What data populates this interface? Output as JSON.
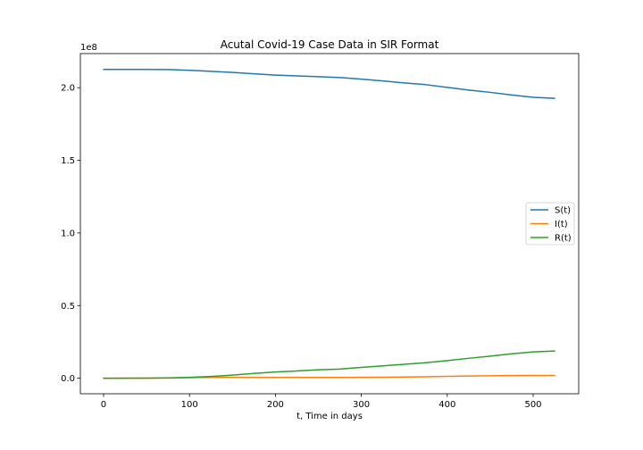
{
  "chart_data": {
    "type": "line",
    "title": "Acutal Covid-19 Case Data in SIR Format",
    "xlabel": "t, Time in days",
    "ylabel": "",
    "y_multiplier_label": "1e8",
    "xlim": [
      -27,
      553
    ],
    "ylim": [
      -10700000,
      223500000
    ],
    "x_ticks": [
      0,
      100,
      200,
      300,
      400,
      500
    ],
    "x_tick_labels": [
      "0",
      "100",
      "200",
      "300",
      "400",
      "500"
    ],
    "y_ticks": [
      0,
      50000000,
      100000000,
      150000000,
      200000000
    ],
    "y_tick_labels": [
      "0.0",
      "0.5",
      "1.0",
      "1.5",
      "2.0"
    ],
    "grid": false,
    "legend_position": "center-right",
    "series": [
      {
        "name": "S(t)",
        "color": "#1f77b4",
        "x": [
          0,
          25,
          50,
          75,
          100,
          125,
          150,
          175,
          200,
          225,
          250,
          275,
          300,
          325,
          350,
          375,
          400,
          425,
          450,
          475,
          500,
          525
        ],
        "values": [
          212600000,
          212600000,
          212600000,
          212500000,
          212000000,
          211300000,
          210500000,
          209600000,
          208700000,
          208100000,
          207600000,
          207000000,
          205900000,
          204700000,
          203300000,
          202100000,
          200200000,
          198400000,
          196800000,
          195000000,
          193400000,
          192700000
        ]
      },
      {
        "name": "I(t)",
        "color": "#ff7f0e",
        "x": [
          0,
          25,
          50,
          75,
          100,
          125,
          150,
          175,
          200,
          225,
          250,
          275,
          300,
          325,
          350,
          375,
          400,
          425,
          450,
          475,
          500,
          525
        ],
        "values": [
          0,
          20000,
          60000,
          150000,
          350000,
          500000,
          600000,
          600000,
          500000,
          500000,
          500000,
          500000,
          600000,
          700000,
          800000,
          1000000,
          1300000,
          1500000,
          1700000,
          1800000,
          1900000,
          1900000
        ]
      },
      {
        "name": "R(t)",
        "color": "#2ca02c",
        "x": [
          0,
          25,
          50,
          75,
          100,
          125,
          150,
          175,
          200,
          225,
          250,
          275,
          300,
          325,
          350,
          375,
          400,
          425,
          450,
          475,
          500,
          525
        ],
        "values": [
          0,
          10000,
          50000,
          200000,
          600000,
          1200000,
          2100000,
          3300000,
          4300000,
          5000000,
          5800000,
          6300000,
          7400000,
          8500000,
          9600000,
          10700000,
          12100000,
          13700000,
          15200000,
          16800000,
          18100000,
          18700000
        ]
      }
    ]
  }
}
